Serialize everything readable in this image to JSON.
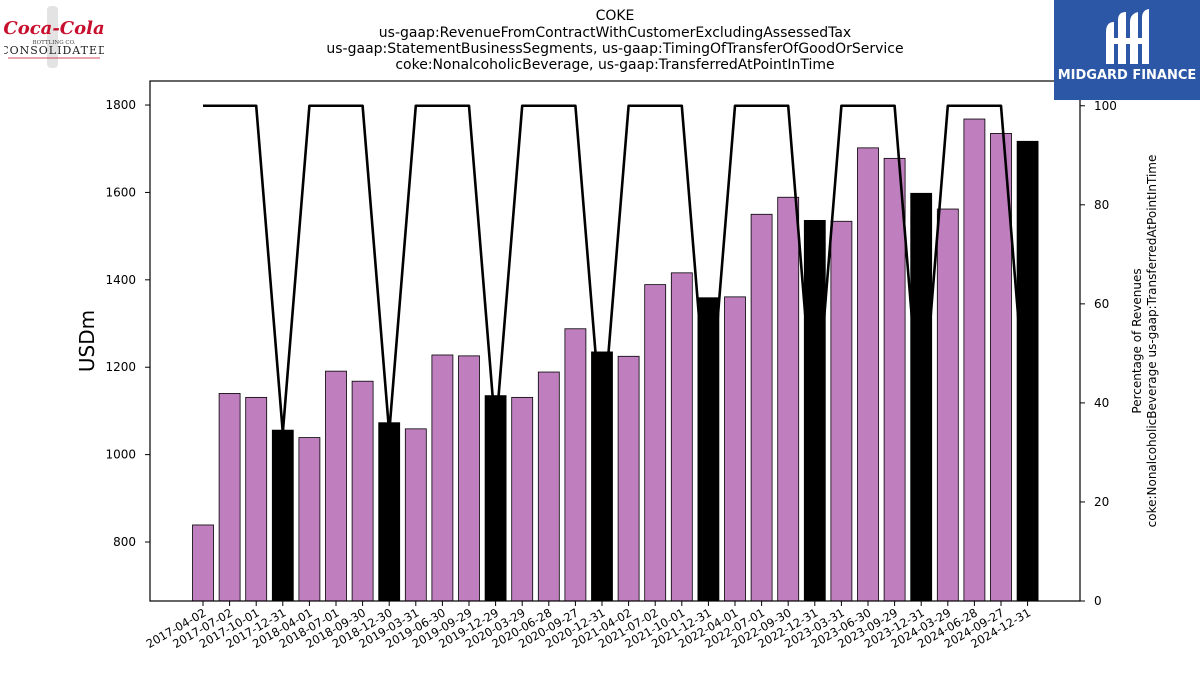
{
  "logos": {
    "left": {
      "brand_script": "Coca-Cola",
      "bottling_text": "BOTTLING CO.",
      "consolidated_text": "CONSOLIDATED"
    },
    "right": {
      "text": "MIDGARD FINANCE"
    }
  },
  "chart_data": {
    "type": "bar",
    "title_lines": [
      "COKE",
      "us-gaap:RevenueFromContractWithCustomerExcludingAssessedTax",
      "us-gaap:StatementBusinessSegments, us-gaap:TimingOfTransferOfGoodOrService",
      "coke:NonalcoholicBeverage, us-gaap:TransferredAtPointInTime"
    ],
    "ylabel": "USDm",
    "ylabel_right": [
      "Percentage of Revenues",
      "coke:NonalcoholicBeverage us-gaap:TransferredAtPointInTime"
    ],
    "ylim": [
      665,
      1855
    ],
    "ylim_right": [
      0,
      105
    ],
    "yticks": [
      800,
      1000,
      1200,
      1400,
      1600,
      1800
    ],
    "yticks_right": [
      0,
      20,
      40,
      60,
      80,
      100
    ],
    "grid": false,
    "colors": {
      "bar": "#bf7fbf",
      "bar_quarter_end": "#000000",
      "line": "#000000"
    },
    "categories": [
      "2017-04-02",
      "2017-07-02",
      "2017-10-01",
      "2017-12-31",
      "2018-04-01",
      "2018-07-01",
      "2018-09-30",
      "2018-12-30",
      "2019-03-31",
      "2019-06-30",
      "2019-09-29",
      "2019-12-29",
      "2020-03-29",
      "2020-06-28",
      "2020-09-27",
      "2020-12-31",
      "2021-04-02",
      "2021-07-02",
      "2021-10-01",
      "2021-12-31",
      "2022-04-01",
      "2022-07-01",
      "2022-09-30",
      "2022-12-31",
      "2023-03-31",
      "2023-06-30",
      "2023-09-29",
      "2023-12-31",
      "2024-03-29",
      "2024-06-28",
      "2024-09-27",
      "2024-12-31"
    ],
    "series": [
      {
        "type": "bar",
        "values": [
          839,
          1140,
          1131,
          1056,
          1039,
          1191,
          1168,
          1073,
          1059,
          1228,
          1226,
          1135,
          1131,
          1189,
          1288,
          1235,
          1225,
          1389,
          1416,
          1359,
          1361,
          1550,
          1589,
          1536,
          1534,
          1702,
          1678,
          1598,
          1562,
          1768,
          1735,
          1717
        ],
        "highlight": [
          false,
          false,
          false,
          true,
          false,
          false,
          false,
          true,
          false,
          false,
          false,
          true,
          false,
          false,
          false,
          true,
          false,
          false,
          false,
          true,
          false,
          false,
          false,
          true,
          false,
          false,
          false,
          true,
          false,
          false,
          false,
          true
        ]
      },
      {
        "type": "line",
        "axis": "right",
        "values": [
          100,
          100,
          100,
          34,
          100,
          100,
          100,
          34,
          100,
          100,
          100,
          34,
          100,
          100,
          100,
          34,
          100,
          100,
          100,
          34,
          100,
          100,
          100,
          34,
          100,
          100,
          100,
          34,
          100,
          100,
          100,
          34
        ]
      }
    ]
  }
}
